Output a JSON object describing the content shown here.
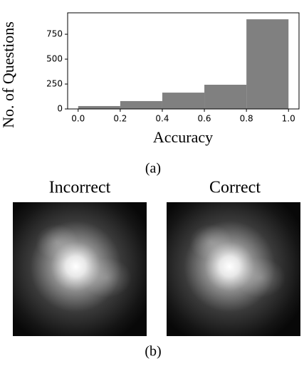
{
  "chart_data": {
    "type": "histogram",
    "xlabel": "Accuracy",
    "ylabel": "No. of Questions",
    "bins": [
      0.0,
      0.2,
      0.4,
      0.6,
      0.8,
      1.0
    ],
    "counts": [
      29,
      79,
      164,
      243,
      900
    ],
    "color": "#808080",
    "xlim": [
      -0.05,
      1.05
    ],
    "ylim": [
      0,
      965
    ],
    "xticks": [
      {
        "value": 0.0,
        "label": "0.0"
      },
      {
        "value": 0.2,
        "label": "0.2"
      },
      {
        "value": 0.4,
        "label": "0.4"
      },
      {
        "value": 0.6,
        "label": "0.6"
      },
      {
        "value": 0.8,
        "label": "0.8"
      },
      {
        "value": 1.0,
        "label": "1.0"
      }
    ],
    "yticks": [
      0,
      250,
      500,
      750
    ],
    "grid": false
  },
  "captions": {
    "a": "(a)",
    "b": "(b)"
  },
  "panels": [
    {
      "title": "Incorrect"
    },
    {
      "title": "Correct"
    }
  ]
}
